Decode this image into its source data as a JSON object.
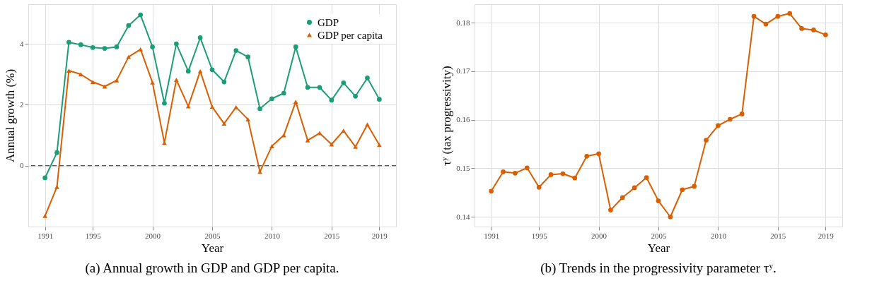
{
  "chart_data": [
    {
      "type": "line",
      "title": "(a) Annual growth in GDP and GDP per capita.",
      "xlabel": "Year",
      "ylabel": "Annual growth (%)",
      "x": [
        1991,
        1992,
        1993,
        1994,
        1995,
        1996,
        1997,
        1998,
        1999,
        2000,
        2001,
        2002,
        2003,
        2004,
        2005,
        2006,
        2007,
        2008,
        2009,
        2010,
        2011,
        2012,
        2013,
        2014,
        2015,
        2016,
        2017,
        2018,
        2019
      ],
      "series": [
        {
          "name": "GDP",
          "color": "#1b9e77",
          "marker": "circle",
          "values": [
            -0.4,
            0.43,
            4.05,
            3.97,
            3.88,
            3.85,
            3.9,
            4.6,
            4.95,
            3.9,
            2.05,
            4.0,
            3.1,
            4.2,
            3.15,
            2.75,
            3.78,
            3.57,
            1.87,
            2.2,
            2.38,
            3.9,
            2.57,
            2.57,
            2.15,
            2.72,
            2.28,
            2.88,
            2.18
          ]
        },
        {
          "name": "GDP per capita",
          "color": "#d95f02",
          "marker": "triangle",
          "values": [
            -1.65,
            -0.7,
            3.12,
            3.0,
            2.75,
            2.6,
            2.8,
            3.57,
            3.82,
            2.73,
            0.75,
            2.82,
            1.95,
            3.1,
            1.93,
            1.38,
            1.92,
            1.52,
            -0.2,
            0.64,
            1.0,
            2.1,
            0.83,
            1.07,
            0.7,
            1.15,
            0.62,
            1.35,
            0.68
          ]
        }
      ],
      "xlim": [
        1989.6,
        2020.4
      ],
      "xticks": [
        1991,
        1995,
        2000,
        2005,
        2010,
        2015,
        2019
      ],
      "ylim": [
        -2.0,
        5.3
      ],
      "yticks": [
        0,
        2,
        4
      ],
      "ref_lines": [
        {
          "axis": "y",
          "value": 0,
          "color": "#555555",
          "line_style": "dashed"
        }
      ],
      "grid": true,
      "legend": "top right",
      "line_style": "solid"
    },
    {
      "type": "line",
      "title": "(b) Trends in the progressivity parameter τʸ.",
      "xlabel": "Year",
      "ylabel": "τʸ (tax progressivity)",
      "x": [
        1991,
        1992,
        1993,
        1994,
        1995,
        1996,
        1997,
        1998,
        1999,
        2000,
        2001,
        2002,
        2003,
        2004,
        2005,
        2006,
        2007,
        2008,
        2009,
        2010,
        2011,
        2012,
        2013,
        2014,
        2015,
        2016,
        2017,
        2018,
        2019
      ],
      "series": [
        {
          "color": "#d95f02",
          "marker": "circle",
          "values": [
            0.1453,
            0.1493,
            0.149,
            0.1501,
            0.1461,
            0.1487,
            0.1489,
            0.148,
            0.1525,
            0.153,
            0.1414,
            0.144,
            0.146,
            0.1481,
            0.1433,
            0.14,
            0.1456,
            0.1463,
            0.1558,
            0.1588,
            0.1601,
            0.1612,
            0.1813,
            0.1797,
            0.1813,
            0.1819,
            0.1788,
            0.1785,
            0.1775
          ]
        }
      ],
      "xlim": [
        1989.6,
        2020.4
      ],
      "xticks": [
        1991,
        1995,
        2000,
        2005,
        2010,
        2015,
        2019
      ],
      "ylim": [
        0.138,
        0.1838
      ],
      "yticks": [
        0.14,
        0.15,
        0.16,
        0.17,
        0.18
      ],
      "grid": true,
      "legend": false,
      "line_style": "solid"
    }
  ]
}
